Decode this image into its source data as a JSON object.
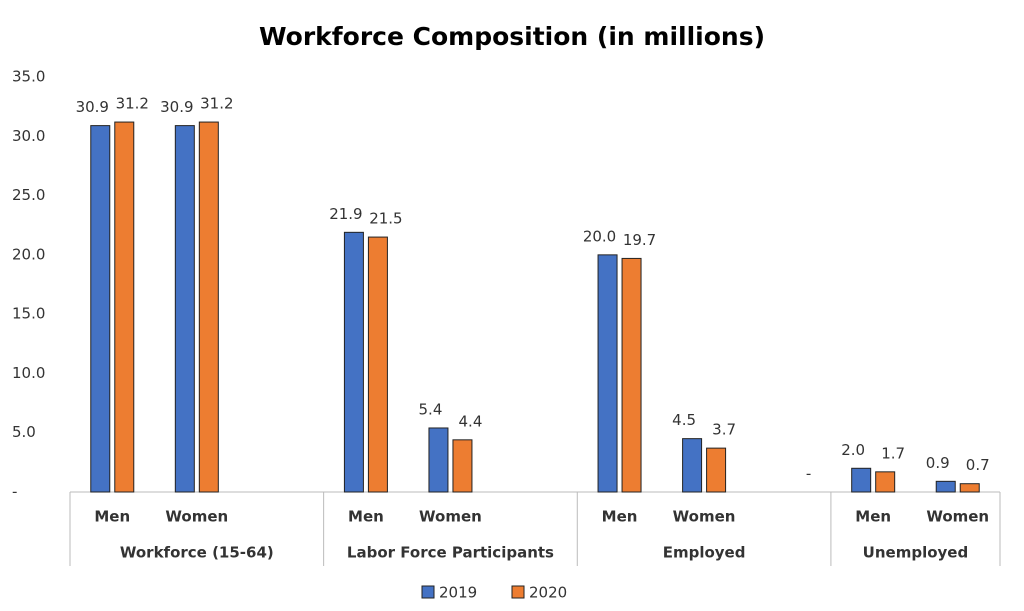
{
  "chart_data": {
    "type": "bar",
    "title": "Workforce Composition (in millions)",
    "groups": [
      {
        "name": "Workforce (15-64)",
        "categories": [
          "Men",
          "Women",
          null
        ]
      },
      {
        "name": "Labor Force Participants",
        "categories": [
          "Men",
          "Women",
          null
        ]
      },
      {
        "name": "Employed",
        "categories": [
          "Men",
          "Women",
          null
        ]
      },
      {
        "name": "Unemployed",
        "categories": [
          "Men",
          "Women"
        ]
      }
    ],
    "series": [
      {
        "name": "2019",
        "color": "#4472c4",
        "values": [
          30.9,
          30.9,
          null,
          21.9,
          5.4,
          null,
          20.0,
          4.5,
          null,
          2.0,
          0.9
        ],
        "value_labels": [
          "30.9",
          "30.9",
          null,
          "21.9",
          "5.4",
          null,
          "20.0",
          "4.5",
          null,
          "2.0",
          "0.9"
        ]
      },
      {
        "name": "2020",
        "color": "#ed7d31",
        "values": [
          31.2,
          31.2,
          null,
          21.5,
          4.4,
          null,
          19.7,
          3.7,
          0,
          1.7,
          0.7
        ],
        "value_labels": [
          "31.2",
          "31.2",
          null,
          "21.5",
          "4.4",
          null,
          "19.7",
          "3.7",
          "-",
          "1.7",
          "0.7"
        ]
      }
    ],
    "ylim": [
      0,
      35
    ],
    "yticks": [
      {
        "value": 0,
        "label": "-"
      },
      {
        "value": 5,
        "label": "5.0"
      },
      {
        "value": 10,
        "label": "10.0"
      },
      {
        "value": 15,
        "label": "15.0"
      },
      {
        "value": 20,
        "label": "20.0"
      },
      {
        "value": 25,
        "label": "25.0"
      },
      {
        "value": 30,
        "label": "30.0"
      },
      {
        "value": 35,
        "label": "35.0"
      }
    ],
    "grid": false,
    "legend": "bottom"
  }
}
